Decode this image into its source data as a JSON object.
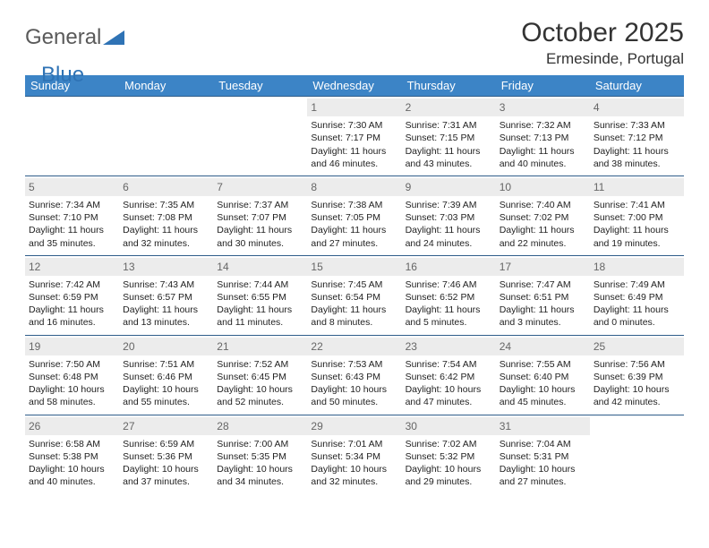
{
  "brand": {
    "part1": "General",
    "part2": "Blue"
  },
  "title": {
    "month": "October 2025",
    "location": "Ermesinde, Portugal"
  },
  "headers": [
    "Sunday",
    "Monday",
    "Tuesday",
    "Wednesday",
    "Thursday",
    "Friday",
    "Saturday"
  ],
  "colors": {
    "header_bg": "#3c84c6",
    "header_fg": "#ffffff",
    "rule": "#2f5d8a",
    "daynum_bg": "#ececec"
  },
  "weeks": [
    [
      null,
      null,
      null,
      {
        "n": "1",
        "sr": "7:30 AM",
        "ss": "7:17 PM",
        "dl": "11 hours and 46 minutes."
      },
      {
        "n": "2",
        "sr": "7:31 AM",
        "ss": "7:15 PM",
        "dl": "11 hours and 43 minutes."
      },
      {
        "n": "3",
        "sr": "7:32 AM",
        "ss": "7:13 PM",
        "dl": "11 hours and 40 minutes."
      },
      {
        "n": "4",
        "sr": "7:33 AM",
        "ss": "7:12 PM",
        "dl": "11 hours and 38 minutes."
      }
    ],
    [
      {
        "n": "5",
        "sr": "7:34 AM",
        "ss": "7:10 PM",
        "dl": "11 hours and 35 minutes."
      },
      {
        "n": "6",
        "sr": "7:35 AM",
        "ss": "7:08 PM",
        "dl": "11 hours and 32 minutes."
      },
      {
        "n": "7",
        "sr": "7:37 AM",
        "ss": "7:07 PM",
        "dl": "11 hours and 30 minutes."
      },
      {
        "n": "8",
        "sr": "7:38 AM",
        "ss": "7:05 PM",
        "dl": "11 hours and 27 minutes."
      },
      {
        "n": "9",
        "sr": "7:39 AM",
        "ss": "7:03 PM",
        "dl": "11 hours and 24 minutes."
      },
      {
        "n": "10",
        "sr": "7:40 AM",
        "ss": "7:02 PM",
        "dl": "11 hours and 22 minutes."
      },
      {
        "n": "11",
        "sr": "7:41 AM",
        "ss": "7:00 PM",
        "dl": "11 hours and 19 minutes."
      }
    ],
    [
      {
        "n": "12",
        "sr": "7:42 AM",
        "ss": "6:59 PM",
        "dl": "11 hours and 16 minutes."
      },
      {
        "n": "13",
        "sr": "7:43 AM",
        "ss": "6:57 PM",
        "dl": "11 hours and 13 minutes."
      },
      {
        "n": "14",
        "sr": "7:44 AM",
        "ss": "6:55 PM",
        "dl": "11 hours and 11 minutes."
      },
      {
        "n": "15",
        "sr": "7:45 AM",
        "ss": "6:54 PM",
        "dl": "11 hours and 8 minutes."
      },
      {
        "n": "16",
        "sr": "7:46 AM",
        "ss": "6:52 PM",
        "dl": "11 hours and 5 minutes."
      },
      {
        "n": "17",
        "sr": "7:47 AM",
        "ss": "6:51 PM",
        "dl": "11 hours and 3 minutes."
      },
      {
        "n": "18",
        "sr": "7:49 AM",
        "ss": "6:49 PM",
        "dl": "11 hours and 0 minutes."
      }
    ],
    [
      {
        "n": "19",
        "sr": "7:50 AM",
        "ss": "6:48 PM",
        "dl": "10 hours and 58 minutes."
      },
      {
        "n": "20",
        "sr": "7:51 AM",
        "ss": "6:46 PM",
        "dl": "10 hours and 55 minutes."
      },
      {
        "n": "21",
        "sr": "7:52 AM",
        "ss": "6:45 PM",
        "dl": "10 hours and 52 minutes."
      },
      {
        "n": "22",
        "sr": "7:53 AM",
        "ss": "6:43 PM",
        "dl": "10 hours and 50 minutes."
      },
      {
        "n": "23",
        "sr": "7:54 AM",
        "ss": "6:42 PM",
        "dl": "10 hours and 47 minutes."
      },
      {
        "n": "24",
        "sr": "7:55 AM",
        "ss": "6:40 PM",
        "dl": "10 hours and 45 minutes."
      },
      {
        "n": "25",
        "sr": "7:56 AM",
        "ss": "6:39 PM",
        "dl": "10 hours and 42 minutes."
      }
    ],
    [
      {
        "n": "26",
        "sr": "6:58 AM",
        "ss": "5:38 PM",
        "dl": "10 hours and 40 minutes."
      },
      {
        "n": "27",
        "sr": "6:59 AM",
        "ss": "5:36 PM",
        "dl": "10 hours and 37 minutes."
      },
      {
        "n": "28",
        "sr": "7:00 AM",
        "ss": "5:35 PM",
        "dl": "10 hours and 34 minutes."
      },
      {
        "n": "29",
        "sr": "7:01 AM",
        "ss": "5:34 PM",
        "dl": "10 hours and 32 minutes."
      },
      {
        "n": "30",
        "sr": "7:02 AM",
        "ss": "5:32 PM",
        "dl": "10 hours and 29 minutes."
      },
      {
        "n": "31",
        "sr": "7:04 AM",
        "ss": "5:31 PM",
        "dl": "10 hours and 27 minutes."
      },
      null
    ]
  ],
  "labels": {
    "sunrise": "Sunrise:",
    "sunset": "Sunset:",
    "daylight": "Daylight:"
  }
}
